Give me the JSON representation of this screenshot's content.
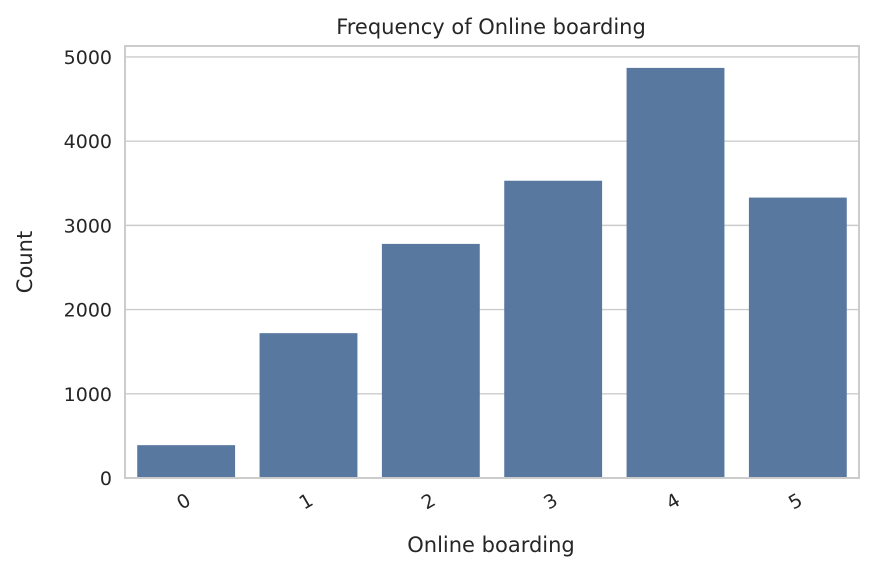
{
  "chart_data": {
    "type": "bar",
    "title": "Frequency of Online boarding",
    "xlabel": "Online boarding",
    "ylabel": "Count",
    "categories": [
      "0",
      "1",
      "2",
      "3",
      "4",
      "5"
    ],
    "values": [
      390,
      1720,
      2780,
      3530,
      4870,
      3330
    ],
    "ylim": [
      0,
      5130
    ],
    "yticks": [
      0,
      1000,
      2000,
      3000,
      4000,
      5000
    ],
    "grid": true,
    "bar_color": "#5878a0",
    "grid_color": "#cccccc",
    "spine_color": "#cccccc"
  }
}
